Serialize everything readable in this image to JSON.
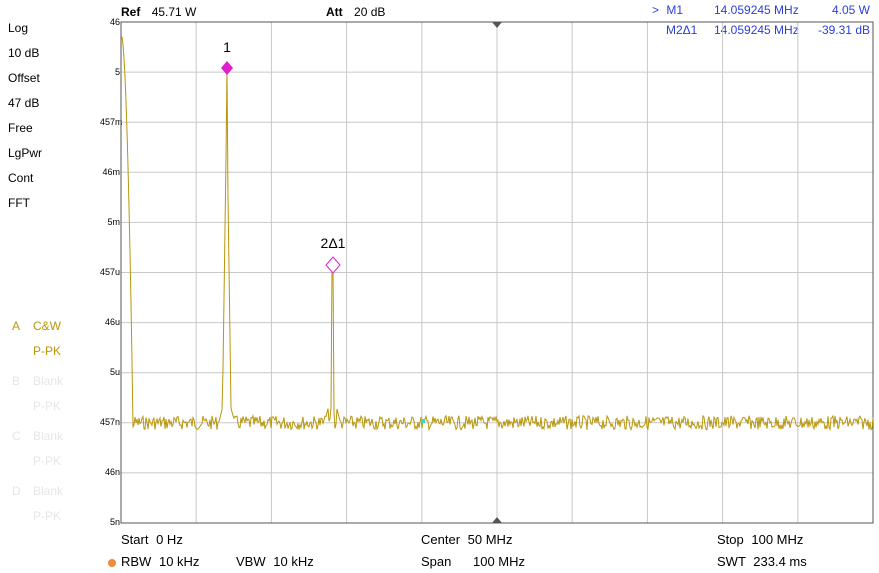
{
  "header": {
    "ref_label": "Ref",
    "ref_value": "45.71 W",
    "att_label": "Att",
    "att_value": "20 dB"
  },
  "markers": {
    "m1": {
      "prefix": ">",
      "name": "M1",
      "freq": "14.059245 MHz",
      "value": "4.05 W"
    },
    "m2": {
      "name": "M2Δ1",
      "freq": "14.059245 MHz",
      "value": "-39.31 dB"
    }
  },
  "settings": [
    "Log",
    "10 dB",
    "Offset",
    "47 dB",
    "Free",
    "LgPwr",
    "Cont",
    "FFT"
  ],
  "traces": [
    {
      "id": "A",
      "name": "C&W",
      "detector": "P-PK",
      "active": true
    },
    {
      "id": "B",
      "name": "Blank",
      "detector": "P-PK",
      "active": false
    },
    {
      "id": "C",
      "name": "Blank",
      "detector": "P-PK",
      "active": false
    },
    {
      "id": "D",
      "name": "Blank",
      "detector": "P-PK",
      "active": false
    }
  ],
  "y_tick_labels": [
    "46",
    "5",
    "457m",
    "46m",
    "5m",
    "457u",
    "46u",
    "5u",
    "457n",
    "46n",
    "5n"
  ],
  "marker_labels": {
    "m1": "1",
    "m2": "2Δ1"
  },
  "footer": {
    "start_label": "Start",
    "start_value": "0 Hz",
    "center_label": "Center",
    "center_value": "50 MHz",
    "stop_label": "Stop",
    "stop_value": "100 MHz",
    "rbw_label": "RBW",
    "rbw_value": "10 kHz",
    "vbw_label": "VBW",
    "vbw_value": "10 kHz",
    "span_label": "Span",
    "span_value": "100 MHz",
    "swt_label": "SWT",
    "swt_value": "233.4 ms"
  },
  "colors": {
    "trace": "#b8960c",
    "marker": "#e020d0",
    "marker_text": "#2a3fd6",
    "grid": "#c8c8c8"
  },
  "chart_data": {
    "type": "line",
    "x_unit": "MHz",
    "xlim": [
      0,
      100
    ],
    "y_scale": "log",
    "noise_floor": "457n",
    "peaks": [
      {
        "x": 14.059245,
        "label": "1",
        "value": "4.05 W"
      },
      {
        "x": 28.12,
        "label": "2Δ1",
        "value": "-39.31 dB"
      }
    ]
  }
}
